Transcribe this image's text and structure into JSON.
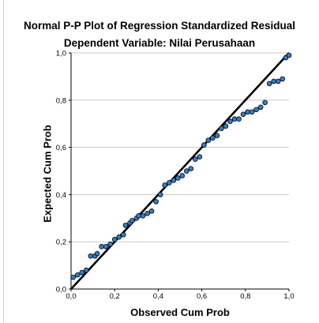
{
  "chart_data": {
    "type": "scatter",
    "title": "Normal P-P Plot of Regression Standardized Residual",
    "subtitle": "Dependent Variable: Nilai Perusahaan",
    "xlabel": "Observed Cum Prob",
    "ylabel": "Expected Cum Prob",
    "xlim": [
      0,
      1
    ],
    "ylim": [
      0,
      1
    ],
    "x_ticks": [
      "0,0",
      "0,2",
      "0,4",
      "0,6",
      "0,8",
      "1,0"
    ],
    "y_ticks": [
      "0,0",
      "0,2",
      "0,4",
      "0,6",
      "0,8",
      "1,0"
    ],
    "grid": "horizontal",
    "reference_line": [
      [
        0,
        0
      ],
      [
        1,
        1
      ]
    ],
    "point_color": "#2f7fd0",
    "points": [
      [
        0.01,
        0.05
      ],
      [
        0.03,
        0.06
      ],
      [
        0.05,
        0.07
      ],
      [
        0.07,
        0.08
      ],
      [
        0.09,
        0.14
      ],
      [
        0.11,
        0.14
      ],
      [
        0.12,
        0.15
      ],
      [
        0.14,
        0.18
      ],
      [
        0.16,
        0.18
      ],
      [
        0.18,
        0.19
      ],
      [
        0.2,
        0.21
      ],
      [
        0.22,
        0.22
      ],
      [
        0.24,
        0.23
      ],
      [
        0.25,
        0.27
      ],
      [
        0.27,
        0.28
      ],
      [
        0.28,
        0.29
      ],
      [
        0.3,
        0.3
      ],
      [
        0.31,
        0.31
      ],
      [
        0.33,
        0.31
      ],
      [
        0.35,
        0.32
      ],
      [
        0.37,
        0.33
      ],
      [
        0.39,
        0.37
      ],
      [
        0.41,
        0.4
      ],
      [
        0.43,
        0.44
      ],
      [
        0.45,
        0.45
      ],
      [
        0.47,
        0.46
      ],
      [
        0.49,
        0.47
      ],
      [
        0.51,
        0.48
      ],
      [
        0.53,
        0.5
      ],
      [
        0.55,
        0.51
      ],
      [
        0.57,
        0.55
      ],
      [
        0.59,
        0.56
      ],
      [
        0.61,
        0.61
      ],
      [
        0.63,
        0.63
      ],
      [
        0.65,
        0.64
      ],
      [
        0.67,
        0.65
      ],
      [
        0.69,
        0.68
      ],
      [
        0.71,
        0.69
      ],
      [
        0.73,
        0.71
      ],
      [
        0.75,
        0.72
      ],
      [
        0.77,
        0.72
      ],
      [
        0.79,
        0.74
      ],
      [
        0.81,
        0.75
      ],
      [
        0.83,
        0.75
      ],
      [
        0.85,
        0.76
      ],
      [
        0.87,
        0.77
      ],
      [
        0.89,
        0.79
      ],
      [
        0.91,
        0.87
      ],
      [
        0.93,
        0.88
      ],
      [
        0.95,
        0.88
      ],
      [
        0.97,
        0.89
      ],
      [
        0.985,
        0.98
      ],
      [
        1.0,
        0.99
      ]
    ]
  }
}
